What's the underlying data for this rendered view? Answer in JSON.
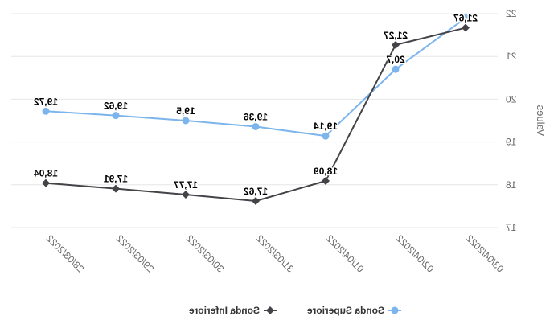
{
  "chart_data": {
    "type": "line",
    "mirrored": true,
    "title": "",
    "xlabel": "",
    "ylabel": "Values",
    "ylim": [
      17,
      22
    ],
    "yticks": [
      "17",
      "18",
      "19",
      "20",
      "21",
      "22"
    ],
    "categories": [
      "03/04/2022",
      "02/04/2022",
      "01/04/2022",
      "31/03/2022",
      "30/03/2022",
      "29/03/2022",
      "28/03/2022"
    ],
    "grid": true,
    "legend_position": "bottom",
    "series": [
      {
        "name": "Sonda Superiore",
        "color": "#7cb5ec",
        "marker": "circle",
        "values": [
          21.9,
          20.7,
          19.14,
          19.36,
          19.5,
          19.62,
          19.72
        ],
        "labels": [
          "",
          "20,7",
          "19,14",
          "19,36",
          "19,5",
          "19,62",
          "19,72"
        ]
      },
      {
        "name": "Sonda Inferiore",
        "color": "#434348",
        "marker": "diamond",
        "values": [
          21.67,
          21.27,
          18.09,
          17.62,
          17.77,
          17.91,
          18.04
        ],
        "labels": [
          "21,67",
          "21,27",
          "18,09",
          "17,62",
          "17,77",
          "17,91",
          "18,04"
        ]
      }
    ]
  }
}
